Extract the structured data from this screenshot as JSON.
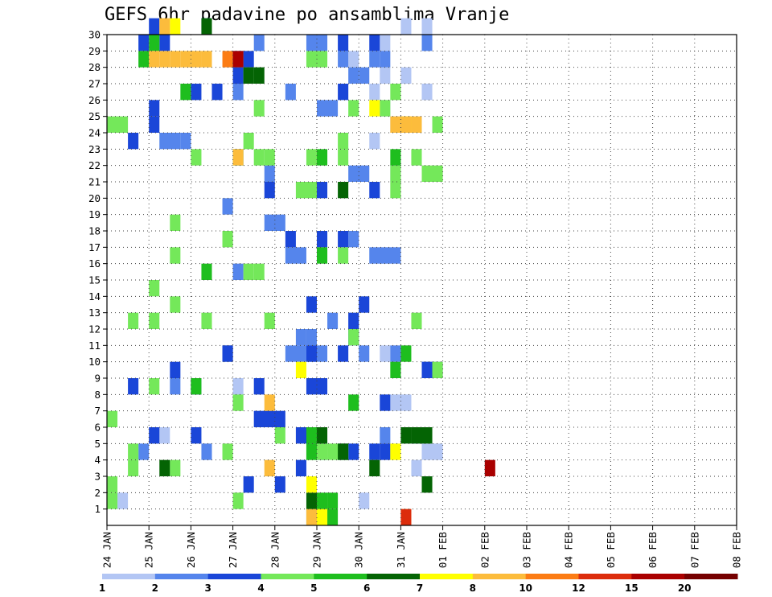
{
  "title": "GEFS 6hr padavine po ansamblima Vranje",
  "chart_data": {
    "type": "heatmap",
    "title": "GEFS 6hr padavine po ansamblima Vranje",
    "xlabel": "",
    "ylabel": "",
    "x_tick_labels": [
      "24 JAN",
      "25 JAN",
      "26 JAN",
      "27 JAN",
      "28 JAN",
      "29 JAN",
      "30 JAN",
      "31 JAN",
      "01 FEB",
      "02 FEB",
      "03 FEB",
      "04 FEB",
      "05 FEB",
      "06 FEB",
      "07 FEB",
      "08 FEB"
    ],
    "y_tick_labels": [
      "1",
      "2",
      "3",
      "4",
      "5",
      "6",
      "7",
      "8",
      "9",
      "10",
      "11",
      "12",
      "13",
      "14",
      "15",
      "16",
      "17",
      "18",
      "19",
      "20",
      "21",
      "22",
      "23",
      "24",
      "25",
      "26",
      "27",
      "28",
      "29",
      "30"
    ],
    "columns_per_day": 4,
    "ylim": [
      0,
      30
    ],
    "grid": true,
    "legend_placement": "bottom",
    "legend": {
      "labels": [
        "1",
        "2",
        "3",
        "4",
        "5",
        "6",
        "7",
        "8",
        "10",
        "12",
        "15",
        "20"
      ],
      "colors": [
        "#b3c6f4",
        "#5585ec",
        "#1a46d8",
        "#74e85a",
        "#1ebe1e",
        "#046404",
        "#ffff00",
        "#fcbc3c",
        "#fc7c14",
        "#dc2c0c",
        "#aa0000",
        "#760000"
      ]
    },
    "runs": [
      [
        0,
        1,
        1,
        1
      ],
      [
        0,
        1,
        24,
        1
      ],
      [
        0,
        3,
        29,
        1
      ],
      [
        0,
        4,
        30,
        2
      ],
      [
        0,
        5,
        4,
        1
      ],
      [
        0,
        5,
        5,
        1
      ],
      [
        0,
        7,
        27,
        2
      ],
      [
        0,
        8,
        12,
        1
      ],
      [
        0,
        10,
        26,
        1
      ],
      [
        0,
        12,
        23,
        1
      ],
      [
        0,
        21,
        27,
        1
      ],
      [
        0,
        23,
        25,
        1
      ],
      [
        0,
        24,
        27,
        1
      ],
      [
        0,
        25,
        26,
        1
      ],
      [
        0,
        26,
        25,
        1
      ],
      [
        0,
        26,
        30,
        1
      ],
      [
        0,
        27,
        26,
        1
      ],
      [
        0,
        27,
        28,
        1
      ],
      [
        0,
        28,
        23,
        1
      ],
      [
        0,
        29,
        26,
        1
      ],
      [
        0,
        30,
        28,
        1
      ],
      [
        0,
        30,
        30,
        1
      ],
      [
        1,
        4,
        3,
        1
      ],
      [
        1,
        4,
        9,
        1
      ],
      [
        1,
        5,
        26,
        1
      ],
      [
        1,
        5,
        29,
        1
      ],
      [
        1,
        8,
        6,
        1
      ],
      [
        1,
        9,
        30,
        2
      ],
      [
        1,
        10,
        11,
        1
      ],
      [
        1,
        10,
        17,
        2
      ],
      [
        1,
        10,
        19,
        2
      ],
      [
        1,
        10,
        24,
        1
      ],
      [
        1,
        10,
        27,
        1
      ],
      [
        1,
        11,
        18,
        1
      ],
      [
        1,
        11,
        19,
        1
      ],
      [
        1,
        12,
        21,
        1
      ],
      [
        1,
        15,
        12,
        1
      ],
      [
        1,
        16,
        17,
        2
      ],
      [
        1,
        16,
        25,
        3
      ],
      [
        1,
        17,
        23,
        1
      ],
      [
        1,
        18,
        15,
        2
      ],
      [
        1,
        19,
        11,
        1
      ],
      [
        1,
        21,
        15,
        1
      ],
      [
        1,
        21,
        23,
        2
      ],
      [
        1,
        22,
        12,
        1
      ],
      [
        1,
        23,
        5,
        2
      ],
      [
        1,
        23,
        7,
        1
      ],
      [
        1,
        25,
        20,
        2
      ],
      [
        1,
        26,
        12,
        1
      ],
      [
        1,
        26,
        17,
        1
      ],
      [
        1,
        27,
        23,
        1
      ],
      [
        1,
        27,
        24,
        1
      ],
      [
        1,
        28,
        22,
        1
      ],
      [
        1,
        28,
        25,
        1
      ],
      [
        1,
        28,
        26,
        1
      ],
      [
        1,
        29,
        14,
        1
      ],
      [
        1,
        29,
        19,
        1
      ],
      [
        1,
        29,
        20,
        1
      ],
      [
        1,
        29,
        30,
        1
      ],
      [
        2,
        2,
        13,
        1
      ],
      [
        2,
        2,
        16,
        1
      ],
      [
        2,
        3,
        18,
        1
      ],
      [
        2,
        4,
        20,
        1
      ],
      [
        2,
        4,
        22,
        1
      ],
      [
        2,
        4,
        23,
        1
      ],
      [
        2,
        4,
        25,
        1
      ],
      [
        2,
        4,
        26,
        1
      ],
      [
        2,
        5,
        4,
        1
      ],
      [
        2,
        5,
        8,
        1
      ],
      [
        2,
        5,
        18,
        2
      ],
      [
        2,
        6,
        14,
        3
      ],
      [
        2,
        7,
        26,
        1
      ],
      [
        2,
        8,
        2,
        1
      ],
      [
        2,
        8,
        8,
        1
      ],
      [
        2,
        8,
        14,
        1
      ],
      [
        2,
        8,
        19,
        2
      ],
      [
        2,
        9,
        6,
        1
      ],
      [
        2,
        9,
        30,
        1
      ],
      [
        2,
        10,
        11,
        1
      ],
      [
        2,
        10,
        19,
        1
      ],
      [
        2,
        10,
        22,
        1
      ],
      [
        2,
        11,
        23,
        1
      ],
      [
        2,
        12,
        23,
        1
      ],
      [
        2,
        13,
        19,
        1
      ],
      [
        2,
        13,
        24,
        1
      ],
      [
        2,
        17,
        17,
        1
      ],
      [
        2,
        17,
        20,
        1
      ],
      [
        2,
        17,
        22,
        1
      ],
      [
        2,
        20,
        15,
        1
      ],
      [
        2,
        20,
        20,
        1
      ],
      [
        2,
        20,
        25,
        1
      ],
      [
        2,
        23,
        2,
        1
      ],
      [
        2,
        24,
        4,
        1
      ],
      [
        2,
        25,
        4,
        1
      ],
      [
        2,
        26,
        8,
        1
      ],
      [
        2,
        26,
        10,
        1
      ],
      [
        2,
        26,
        22,
        1
      ],
      [
        2,
        27,
        12,
        1
      ],
      [
        2,
        28,
        12,
        1
      ],
      [
        2,
        28,
        13,
        1
      ],
      [
        2,
        29,
        3,
        1
      ],
      [
        2,
        29,
        5,
        1
      ],
      [
        2,
        29,
        22,
        1
      ],
      [
        2,
        29,
        25,
        1
      ],
      [
        2,
        30,
        4,
        1
      ],
      [
        2,
        30,
        9,
        1
      ],
      [
        3,
        1,
        0,
        1
      ],
      [
        3,
        1,
        12,
        1
      ],
      [
        3,
        2,
        0,
        1
      ],
      [
        3,
        3,
        2,
        1
      ],
      [
        3,
        3,
        6,
        1
      ],
      [
        3,
        4,
        2,
        1
      ],
      [
        3,
        4,
        11,
        1
      ],
      [
        3,
        4,
        19,
        1
      ],
      [
        3,
        4,
        20,
        1
      ],
      [
        3,
        4,
        21,
        2
      ],
      [
        3,
        5,
        16,
        1
      ],
      [
        3,
        6,
        0,
        1
      ],
      [
        3,
        7,
        12,
        1
      ],
      [
        3,
        8,
        4,
        1
      ],
      [
        3,
        9,
        31,
        1
      ],
      [
        3,
        11,
        23,
        1
      ],
      [
        3,
        12,
        2,
        1
      ],
      [
        3,
        12,
        4,
        1
      ],
      [
        3,
        12,
        9,
        1
      ],
      [
        3,
        12,
        15,
        1
      ],
      [
        3,
        12,
        29,
        1
      ],
      [
        3,
        13,
        6,
        1
      ],
      [
        3,
        14,
        4,
        1
      ],
      [
        3,
        15,
        13,
        1
      ],
      [
        3,
        15,
        14,
        1
      ],
      [
        3,
        16,
        6,
        1
      ],
      [
        3,
        16,
        22,
        1
      ],
      [
        3,
        17,
        11,
        1
      ],
      [
        3,
        18,
        6,
        1
      ],
      [
        3,
        20,
        18,
        2
      ],
      [
        3,
        20,
        27,
        1
      ],
      [
        3,
        21,
        27,
        1
      ],
      [
        3,
        21,
        30,
        2
      ],
      [
        3,
        22,
        8,
        1
      ],
      [
        3,
        22,
        12,
        1
      ],
      [
        3,
        22,
        14,
        1
      ],
      [
        3,
        22,
        15,
        1
      ],
      [
        3,
        22,
        19,
        1
      ],
      [
        3,
        22,
        22,
        1
      ],
      [
        3,
        22,
        29,
        1
      ],
      [
        3,
        23,
        13,
        1
      ],
      [
        3,
        23,
        22,
        1
      ],
      [
        3,
        24,
        0,
        2
      ],
      [
        3,
        24,
        31,
        1
      ],
      [
        3,
        25,
        14,
        1
      ],
      [
        3,
        25,
        23,
        1
      ],
      [
        3,
        25,
        26,
        1
      ],
      [
        3,
        26,
        27,
        1
      ],
      [
        3,
        27,
        13,
        1
      ],
      [
        3,
        28,
        19,
        1
      ],
      [
        3,
        28,
        20,
        1
      ],
      [
        4,
        0,
        21,
        1
      ],
      [
        4,
        1,
        20,
        1
      ],
      [
        4,
        1,
        21,
        1
      ],
      [
        4,
        4,
        19,
        1
      ],
      [
        4,
        5,
        19,
        1
      ],
      [
        4,
        7,
        23,
        1
      ],
      [
        4,
        8,
        8,
        1
      ],
      [
        4,
        9,
        27,
        1
      ],
      [
        4,
        10,
        28,
        1
      ],
      [
        4,
        15,
        9,
        1
      ],
      [
        4,
        16,
        20,
        1
      ],
      [
        4,
        22,
        20,
        1
      ],
      [
        4,
        22,
        27,
        1
      ],
      [
        4,
        26,
        7,
        1
      ],
      [
        4,
        28,
        3,
        1
      ],
      [
        4,
        29,
        4,
        1
      ],
      [
        5,
        0,
        19,
        2
      ],
      [
        5,
        1,
        19,
        1
      ],
      [
        5,
        2,
        30,
        1
      ],
      [
        5,
        3,
        5,
        1
      ],
      [
        5,
        3,
        25,
        1
      ],
      [
        5,
        4,
        22,
        1
      ],
      [
        5,
        5,
        20,
        1
      ],
      [
        5,
        5,
        28,
        1
      ],
      [
        5,
        5,
        29,
        1
      ],
      [
        5,
        5,
        30,
        1
      ],
      [
        5,
        20,
        22,
        1
      ],
      [
        5,
        27,
        13,
        1
      ],
      [
        5,
        27,
        14,
        1
      ],
      [
        5,
        30,
        9,
        1
      ],
      [
        6,
        0,
        20,
        1
      ],
      [
        6,
        2,
        19,
        1
      ],
      [
        6,
        4,
        27,
        1
      ],
      [
        6,
        9,
        18,
        1
      ],
      [
        6,
        24,
        28,
        1
      ],
      [
        6,
        25,
        25,
        1
      ],
      [
        6,
        30,
        6,
        1
      ],
      [
        7,
        0,
        19,
        1
      ],
      [
        7,
        3,
        15,
        1
      ],
      [
        7,
        7,
        15,
        1
      ],
      [
        7,
        0,
        28,
        1
      ],
      [
        7,
        22,
        12,
        1
      ],
      [
        7,
        24,
        27,
        1
      ],
      [
        7,
        24,
        28,
        1
      ],
      [
        7,
        24,
        29,
        1
      ],
      [
        7,
        30,
        5,
        1
      ],
      [
        7,
        28,
        4,
        1
      ],
      [
        7,
        28,
        5,
        1
      ],
      [
        7,
        28,
        6,
        1
      ],
      [
        7,
        28,
        7,
        1
      ],
      [
        7,
        28,
        8,
        1
      ],
      [
        7,
        28,
        9,
        1
      ],
      [
        8,
        28,
        11,
        1
      ],
      [
        9,
        0,
        28,
        1
      ],
      [
        10,
        28,
        12,
        1
      ],
      [
        10,
        3,
        36,
        1
      ]
    ]
  }
}
